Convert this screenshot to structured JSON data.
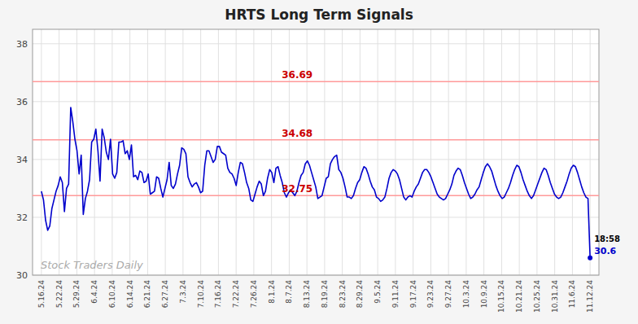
{
  "chart_data": {
    "type": "line",
    "title": "HRTS Long Term Signals",
    "color": "#0000cc",
    "grid": true,
    "x": [
      0,
      1,
      2,
      3,
      4,
      5,
      6,
      7,
      8,
      9,
      10,
      11,
      12,
      13,
      14,
      15,
      16,
      17,
      18,
      19,
      20,
      21,
      22,
      23,
      24,
      25,
      26,
      27,
      28,
      29,
      30,
      31,
      32,
      33,
      34,
      35,
      36,
      37,
      38,
      39,
      40,
      41,
      42,
      43,
      44,
      45,
      46,
      47,
      48,
      49,
      50,
      51,
      52,
      53,
      54,
      55,
      56,
      57,
      58,
      59,
      60,
      61,
      62,
      63,
      64,
      65,
      66,
      67,
      68,
      69,
      70,
      71,
      72,
      73,
      74,
      75,
      76,
      77,
      78,
      79,
      80,
      81,
      82,
      83,
      84,
      85,
      86,
      87,
      88,
      89,
      90,
      91,
      92,
      93,
      94,
      95,
      96,
      97,
      98,
      99,
      100,
      101,
      102,
      103,
      104,
      105,
      106,
      107,
      108,
      109,
      110,
      111,
      112,
      113,
      114,
      115,
      116,
      117,
      118,
      119,
      120,
      121,
      122,
      123,
      124,
      125,
      126,
      127,
      128,
      129,
      130,
      131,
      132,
      133,
      134,
      135,
      136,
      137,
      138,
      139,
      140,
      141,
      142,
      143,
      144,
      145,
      146,
      147,
      148,
      149,
      150,
      151,
      152,
      153,
      154,
      155,
      156,
      157,
      158,
      159,
      160,
      161,
      162,
      163,
      164,
      165,
      166,
      167,
      168,
      169,
      170,
      171,
      172,
      173,
      174,
      175,
      176,
      177,
      178,
      179,
      180,
      181,
      182,
      183,
      184,
      185,
      186,
      187,
      188,
      189,
      190,
      191,
      192,
      193,
      194,
      195,
      196,
      197,
      198,
      199,
      200,
      201,
      202,
      203,
      204,
      205,
      206,
      207,
      208,
      209,
      210,
      211,
      212,
      213,
      214,
      215,
      216,
      217,
      218,
      219,
      220,
      221,
      222,
      223,
      224,
      225,
      226,
      227,
      228,
      229,
      230,
      231,
      232,
      233,
      234,
      235,
      236,
      237,
      238,
      239,
      240,
      241,
      242,
      243,
      244,
      245,
      246,
      247,
      248,
      249,
      250,
      251,
      252,
      253,
      254,
      255,
      256,
      257,
      258,
      259,
      260,
      261,
      262
    ],
    "values": [
      32.9,
      32.6,
      31.9,
      31.55,
      31.7,
      32.3,
      32.6,
      32.9,
      33.1,
      33.4,
      33.2,
      32.2,
      33.0,
      33.15,
      35.8,
      35.3,
      34.7,
      34.3,
      33.5,
      34.15,
      32.1,
      32.65,
      32.9,
      33.3,
      34.6,
      34.7,
      35.05,
      34.3,
      33.25,
      35.05,
      34.75,
      34.25,
      34.0,
      34.7,
      33.5,
      33.35,
      33.55,
      34.6,
      34.6,
      34.65,
      34.2,
      34.3,
      34.0,
      34.5,
      33.4,
      33.45,
      33.3,
      33.6,
      33.55,
      33.2,
      33.25,
      33.5,
      32.8,
      32.85,
      32.9,
      33.4,
      33.35,
      33.0,
      32.7,
      33.0,
      33.3,
      33.9,
      33.1,
      33.0,
      33.15,
      33.5,
      33.8,
      34.4,
      34.35,
      34.2,
      33.4,
      33.2,
      33.05,
      33.15,
      33.2,
      33.05,
      32.85,
      32.9,
      33.8,
      34.3,
      34.3,
      34.1,
      33.9,
      34.0,
      34.45,
      34.45,
      34.25,
      34.2,
      34.15,
      33.7,
      33.55,
      33.5,
      33.35,
      33.1,
      33.55,
      33.9,
      33.85,
      33.55,
      33.2,
      33.0,
      32.6,
      32.55,
      32.8,
      33.05,
      33.25,
      33.15,
      32.75,
      32.9,
      33.35,
      33.65,
      33.55,
      33.2,
      33.7,
      33.75,
      33.45,
      33.2,
      32.85,
      32.7,
      32.85,
      32.95,
      32.85,
      32.75,
      32.9,
      33.2,
      33.45,
      33.55,
      33.85,
      33.95,
      33.8,
      33.55,
      33.3,
      33.05,
      32.65,
      32.7,
      32.75,
      33.05,
      33.35,
      33.4,
      33.85,
      34.0,
      34.1,
      34.15,
      33.65,
      33.55,
      33.35,
      33.05,
      32.7,
      32.7,
      32.65,
      32.75,
      33.0,
      33.2,
      33.3,
      33.55,
      33.75,
      33.7,
      33.5,
      33.25,
      33.05,
      32.95,
      32.7,
      32.65,
      32.55,
      32.6,
      32.7,
      33.0,
      33.35,
      33.55,
      33.65,
      33.6,
      33.5,
      33.3,
      33.0,
      32.7,
      32.6,
      32.7,
      32.75,
      32.7,
      32.9,
      33.05,
      33.15,
      33.35,
      33.55,
      33.65,
      33.65,
      33.55,
      33.4,
      33.2,
      33.0,
      32.8,
      32.7,
      32.65,
      32.6,
      32.65,
      32.8,
      32.95,
      33.15,
      33.45,
      33.6,
      33.7,
      33.65,
      33.45,
      33.2,
      33.0,
      32.8,
      32.65,
      32.7,
      32.8,
      32.95,
      33.05,
      33.3,
      33.55,
      33.75,
      33.85,
      33.75,
      33.6,
      33.35,
      33.1,
      32.9,
      32.75,
      32.65,
      32.7,
      32.85,
      33.0,
      33.2,
      33.45,
      33.65,
      33.8,
      33.75,
      33.55,
      33.3,
      33.1,
      32.9,
      32.75,
      32.65,
      32.75,
      32.95,
      33.15,
      33.35,
      33.55,
      33.7,
      33.65,
      33.45,
      33.2,
      33.0,
      32.8,
      32.7,
      32.65,
      32.7,
      32.85,
      33.05,
      33.25,
      33.5,
      33.7,
      33.8,
      33.75,
      33.55,
      33.3,
      33.05,
      32.85,
      32.7,
      32.65,
      30.6
    ],
    "xlim": [
      -4.225806,
      266.225806
    ],
    "xticks": [
      {
        "value": 0,
        "label": "5.16.24"
      },
      {
        "value": 8.451613,
        "label": "5.22.24"
      },
      {
        "value": 16.903226,
        "label": "5.29.24"
      },
      {
        "value": 25.354839,
        "label": "6.4.24"
      },
      {
        "value": 33.806452,
        "label": "6.10.24"
      },
      {
        "value": 42.258065,
        "label": "6.14.24"
      },
      {
        "value": 50.709677,
        "label": "6.21.24"
      },
      {
        "value": 59.16129,
        "label": "6.27.24"
      },
      {
        "value": 67.612903,
        "label": "7.3.24"
      },
      {
        "value": 76.064516,
        "label": "7.10.24"
      },
      {
        "value": 84.516129,
        "label": "7.16.24"
      },
      {
        "value": 92.967742,
        "label": "7.22.24"
      },
      {
        "value": 101.419355,
        "label": "7.26.24"
      },
      {
        "value": 109.870968,
        "label": "8.1.24"
      },
      {
        "value": 118.322581,
        "label": "8.7.24"
      },
      {
        "value": 126.774194,
        "label": "8.13.24"
      },
      {
        "value": 135.225806,
        "label": "8.19.24"
      },
      {
        "value": 143.677419,
        "label": "8.23.24"
      },
      {
        "value": 152.129032,
        "label": "8.29.24"
      },
      {
        "value": 160.580645,
        "label": "9.5.24"
      },
      {
        "value": 169.032258,
        "label": "9.11.24"
      },
      {
        "value": 177.483871,
        "label": "9.17.24"
      },
      {
        "value": 185.935484,
        "label": "9.23.24"
      },
      {
        "value": 194.387097,
        "label": "9.27.24"
      },
      {
        "value": 202.83871,
        "label": "10.3.24"
      },
      {
        "value": 211.290323,
        "label": "10.9.24"
      },
      {
        "value": 219.741935,
        "label": "10.15.24"
      },
      {
        "value": 228.193548,
        "label": "10.21.24"
      },
      {
        "value": 236.645161,
        "label": "10.25.24"
      },
      {
        "value": 245.096774,
        "label": "10.31.24"
      },
      {
        "value": 253.548387,
        "label": "11.6.24"
      },
      {
        "value": 262,
        "label": "11.12.24"
      }
    ],
    "ylim": [
      30.0,
      38.5
    ],
    "yticks": [
      30,
      32,
      34,
      36,
      38
    ],
    "reference_lines": [
      {
        "value": 36.69,
        "label": "36.69",
        "color": "#ff9999"
      },
      {
        "value": 34.68,
        "label": "34.68",
        "color": "#ff9999"
      },
      {
        "value": 32.75,
        "label": "32.75",
        "color": "#ff9999"
      }
    ],
    "annotations": [
      {
        "text": "18:58"
      },
      {
        "text": "Stock Traders Daily"
      }
    ]
  }
}
